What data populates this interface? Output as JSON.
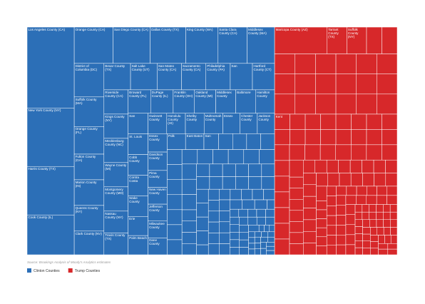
{
  "chart_data": {
    "type": "treemap",
    "source": "Source: Brookings Analysis of Moody's Analytics estimates",
    "series": [
      {
        "name": "Clinton Counties",
        "color": "#2c6fb7",
        "categories": [
          "Los Angeles County (CA)",
          "New York County (NY)",
          "Harris County (TX)",
          "Cook County (IL)",
          "Orange County (CA)",
          "San Diego County (CA)",
          "Dallas County (TX)",
          "King County (WA)",
          "Santa Clara County (CA)",
          "Middlesex County (MA)",
          "District of Columbia (DC)",
          "Suffolk County (MA)",
          "Orange County (FL)",
          "Fulton County (GA)",
          "Marion County (IN)",
          "Queens County (NY)",
          "Clark County (NV)",
          "Bexar County (TX)",
          "Salt Lake County (UT)",
          "San Mateo County (CA)",
          "Sacramento County (CA)",
          "Philadelphia County (PA)",
          "San",
          "Hartford County (CT)",
          "Riverside County (CA)",
          "Kings County (NY)",
          "Mecklenburg County (NC)",
          "Wayne County (MI)",
          "Montgomery County (MD)",
          "Nassau County (NY)",
          "Travis County (TX)",
          "Broward County (FL)",
          "DuPage County (IL)",
          "Franklin County (OH)",
          "Oakland County (MI)",
          "Middlesex County",
          "Baltimore",
          "Hamilton County",
          "San",
          "St. Louis",
          "Cobb County",
          "Contra Costa",
          "Wake County",
          "Erie",
          "Palm Beach",
          "Gwinnett County",
          "Honolulu County (HI)",
          "Shelby County",
          "Multnomah County",
          "Essex",
          "Chester County",
          "Jackson County",
          "Essex County",
          "Davidson County",
          "Pima County",
          "New Haven County",
          "Jefferson County",
          "Milwaukee County",
          "Dane County",
          "Polk",
          "East Baton",
          "San",
          null,
          null,
          null,
          null,
          null,
          null,
          null,
          null,
          null,
          null,
          null,
          null,
          null,
          null,
          null,
          null,
          null,
          null,
          null,
          null,
          null,
          null,
          null,
          null,
          null,
          null,
          null,
          null,
          null,
          null,
          null,
          null,
          null,
          null,
          null,
          null,
          null,
          null,
          null,
          null,
          null,
          null,
          null,
          null,
          null,
          null,
          null,
          null,
          null,
          null,
          null,
          null,
          null,
          null,
          null,
          null,
          null,
          null,
          null,
          null,
          null,
          null,
          null,
          null,
          null,
          null,
          null,
          null,
          null,
          null,
          null,
          null,
          null,
          null,
          null,
          null,
          null,
          null,
          null,
          null,
          null,
          null,
          null,
          null,
          null,
          null,
          null,
          null,
          null,
          null,
          null,
          null,
          null,
          null,
          null,
          null,
          null,
          null,
          null,
          null
        ],
        "values": [
          6500,
          4700,
          3900,
          3200,
          2400,
          2300,
          2200,
          2000,
          1800,
          1700,
          1700,
          1500,
          1400,
          1300,
          1300,
          1300,
          1200,
          1200,
          1200,
          1100,
          1100,
          1100,
          1000,
          1000,
          1000,
          1000,
          1000,
          1000,
          1000,
          900,
          900,
          900,
          900,
          850,
          850,
          800,
          800,
          750,
          700,
          700,
          700,
          700,
          700,
          650,
          650,
          650,
          650,
          650,
          650,
          600,
          600,
          600,
          600,
          600,
          550,
          550,
          550,
          550,
          550,
          500,
          500,
          400,
          380,
          380,
          380,
          380,
          380,
          380,
          380,
          380,
          380,
          380,
          380,
          380,
          380,
          380,
          380,
          380,
          380,
          380,
          380,
          380,
          280,
          280,
          280,
          280,
          280,
          280,
          280,
          280,
          280,
          280,
          280,
          280,
          280,
          280,
          280,
          280,
          280,
          280,
          280,
          280,
          200,
          200,
          200,
          200,
          200,
          200,
          200,
          200,
          200,
          200,
          200,
          200,
          200,
          200,
          200,
          200,
          200,
          200,
          200,
          200,
          120,
          120,
          120,
          120,
          120,
          120,
          120,
          120,
          120,
          120,
          120,
          120,
          120,
          120,
          120,
          120,
          120,
          120,
          120,
          120,
          60,
          60,
          60,
          60,
          60,
          60,
          60,
          60,
          60,
          60,
          60,
          60,
          60,
          60,
          60,
          60,
          60,
          60,
          60,
          60
        ]
      },
      {
        "name": "Trump Counties",
        "color": "#d7282a",
        "categories": [
          "Maricopa County (AZ)",
          "Tarrant County (TX)",
          "Suffolk County (NY)",
          null,
          null,
          null,
          null,
          null,
          null,
          null,
          null,
          null,
          null,
          null,
          null,
          null,
          null,
          null,
          null,
          null,
          null,
          null,
          null,
          "Kent",
          null,
          null,
          null,
          null,
          null,
          null,
          null,
          null,
          null,
          null,
          null,
          null,
          null,
          null,
          null,
          null,
          null,
          null,
          null,
          null,
          null,
          null,
          null,
          null,
          null,
          null,
          null,
          null,
          null,
          null,
          null,
          null,
          null,
          null,
          null,
          null,
          null,
          null,
          null,
          null,
          null,
          null,
          null,
          null,
          null,
          null,
          null,
          null,
          null,
          null,
          null,
          null,
          null,
          null,
          null,
          null,
          null,
          null,
          null,
          null,
          null,
          null,
          null,
          null,
          null,
          null,
          null,
          null,
          null,
          null,
          null,
          null,
          null,
          null,
          null,
          null,
          null,
          null,
          null,
          null,
          null,
          null,
          null,
          null,
          null,
          null,
          null,
          null,
          null,
          null,
          null,
          null,
          null,
          null,
          null,
          null,
          null,
          null,
          null,
          null,
          null,
          null,
          null,
          null,
          null,
          null,
          null,
          null,
          null,
          null,
          null,
          null,
          null,
          null,
          null,
          null,
          null,
          null,
          null,
          null,
          null,
          null,
          null,
          null,
          null,
          null,
          null,
          null,
          null,
          null,
          null,
          null,
          null,
          null,
          null
        ],
        "values": [
          2400,
          900,
          900,
          700,
          700,
          700,
          700,
          700,
          700,
          700,
          700,
          700,
          700,
          700,
          700,
          700,
          700,
          700,
          700,
          700,
          700,
          700,
          700,
          400,
          400,
          400,
          400,
          400,
          400,
          400,
          400,
          400,
          400,
          400,
          400,
          400,
          400,
          400,
          400,
          400,
          400,
          400,
          400,
          400,
          400,
          400,
          400,
          400,
          400,
          400,
          400,
          400,
          400,
          400,
          260,
          260,
          260,
          260,
          260,
          260,
          260,
          260,
          260,
          260,
          260,
          260,
          260,
          260,
          260,
          260,
          260,
          260,
          260,
          260,
          260,
          260,
          260,
          260,
          260,
          260,
          260,
          260,
          260,
          260,
          160,
          160,
          160,
          160,
          160,
          160,
          160,
          160,
          160,
          160,
          160,
          160,
          160,
          160,
          160,
          160,
          160,
          160,
          160,
          160,
          160,
          160,
          160,
          160,
          160,
          160,
          160,
          160,
          160,
          160,
          160,
          160,
          160,
          160,
          160,
          90,
          90,
          90,
          90,
          90,
          90,
          90,
          90,
          90,
          90,
          90,
          90,
          90,
          90,
          90,
          90,
          90,
          90,
          90,
          90,
          90,
          90,
          90,
          90,
          90,
          90,
          90,
          90,
          90,
          90,
          90,
          90,
          90,
          90,
          90,
          90,
          90,
          90,
          90,
          90
        ]
      }
    ]
  }
}
